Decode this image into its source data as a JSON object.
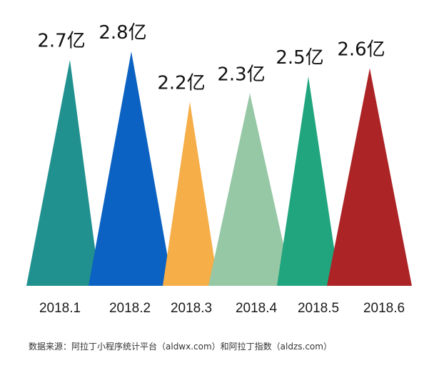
{
  "chart_data": {
    "type": "bar",
    "categories": [
      "2018.1",
      "2018.2",
      "2018.3",
      "2018.4",
      "2018.5",
      "2018.6"
    ],
    "values": [
      2.7,
      2.8,
      2.2,
      2.3,
      2.5,
      2.6
    ],
    "value_labels": [
      "2.7亿",
      "2.8亿",
      "2.2亿",
      "2.3亿",
      "2.5亿",
      "2.6亿"
    ],
    "colors": [
      "#21918f",
      "#0b62c2",
      "#f6ae48",
      "#96c8a5",
      "#21a57e",
      "#ac2425"
    ],
    "mark_shape": "triangle",
    "title": "",
    "xlabel": "",
    "ylabel": "",
    "ylim": [
      0,
      2.8
    ],
    "grid": false,
    "legend": "none"
  },
  "footer": {
    "source": "数据来源：阿拉丁小程序统计平台（aldwx.com）和阿拉丁指数（aldzs.com）"
  }
}
